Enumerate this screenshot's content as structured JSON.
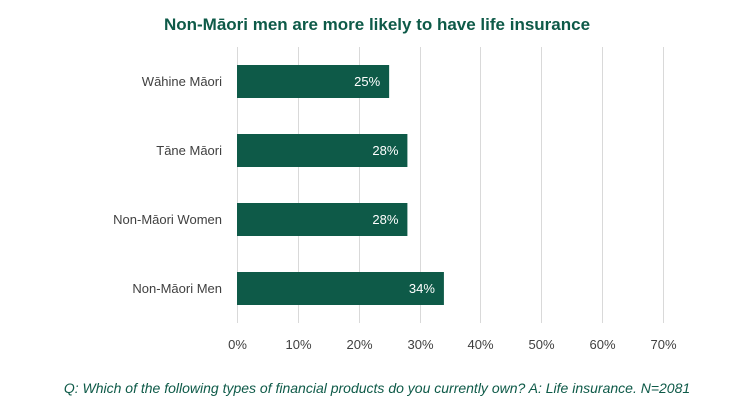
{
  "chart_data": {
    "type": "bar",
    "orientation": "horizontal",
    "title": "Non-Māori men are more likely to have life insurance",
    "categories": [
      "Wāhine Māori",
      "Tāne Māori",
      "Non-Māori Women",
      "Non-Māori Men"
    ],
    "values": [
      25,
      28,
      28,
      34
    ],
    "value_unit": "%",
    "data_labels": [
      "25%",
      "28%",
      "28%",
      "34%"
    ],
    "xlim": [
      0,
      70
    ],
    "x_ticks": [
      0,
      10,
      20,
      30,
      40,
      50,
      60,
      70
    ],
    "x_tick_labels": [
      "0%",
      "10%",
      "20%",
      "30%",
      "40%",
      "50%",
      "60%",
      "70%"
    ],
    "grid": true,
    "bar_color": "#0e5a48",
    "footnote": "Q: Which of the following types of financial products do you currently own? A: Life insurance. N=2081"
  }
}
